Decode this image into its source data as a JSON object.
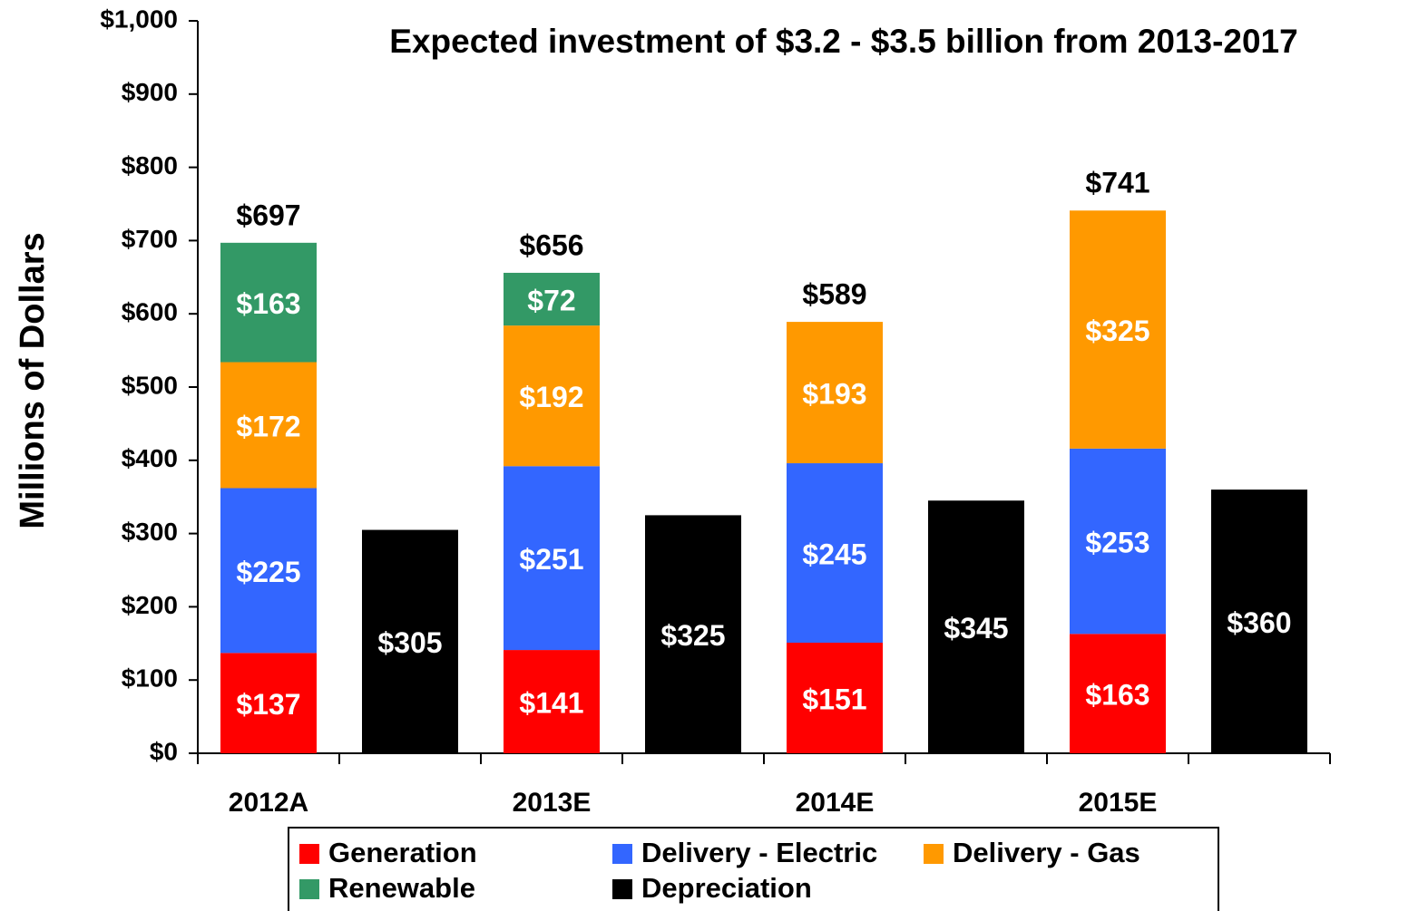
{
  "chart_data": {
    "type": "bar",
    "stacked": true,
    "title": "Expected investment of $3.2 - $3.5 billion from 2013-2017",
    "y_label": "Millions of Dollars",
    "categories": [
      "2012A",
      null,
      "2013E",
      null,
      "2014E",
      null,
      "2015E",
      null
    ],
    "series": [
      {
        "name": "Generation",
        "color": "#ff0000",
        "values": [
          137,
          null,
          141,
          null,
          151,
          null,
          163,
          null
        ],
        "value_labels": [
          "$137",
          null,
          "$141",
          null,
          "$151",
          null,
          "$163",
          null
        ]
      },
      {
        "name": "Delivery - Electric",
        "color": "#3366ff",
        "values": [
          225,
          null,
          251,
          null,
          245,
          null,
          253,
          null
        ],
        "value_labels": [
          "$225",
          null,
          "$251",
          null,
          "$245",
          null,
          "$253",
          null
        ]
      },
      {
        "name": "Delivery - Gas",
        "color": "#ff9900",
        "values": [
          172,
          null,
          192,
          null,
          193,
          null,
          325,
          null
        ],
        "value_labels": [
          "$172",
          null,
          "$192",
          null,
          "$193",
          null,
          "$325",
          null
        ]
      },
      {
        "name": "Renewable",
        "color": "#339966",
        "values": [
          163,
          null,
          72,
          null,
          null,
          null,
          null,
          null
        ],
        "value_labels": [
          "$163",
          null,
          "$72",
          null,
          null,
          null,
          null,
          null
        ]
      },
      {
        "name": "Depreciation",
        "color": "#000000",
        "values": [
          null,
          305,
          null,
          325,
          null,
          345,
          null,
          360
        ],
        "value_labels": [
          null,
          "$305",
          null,
          "$325",
          null,
          "$345",
          null,
          "$360"
        ]
      }
    ],
    "totals": {
      "values": [
        697,
        null,
        656,
        null,
        589,
        null,
        741,
        null
      ],
      "value_labels": [
        "$697",
        null,
        "$656",
        null,
        "$589",
        null,
        "$741",
        null
      ]
    },
    "ylim": [
      0,
      1000
    ],
    "yticks": [
      {
        "value": 0,
        "label": "$0"
      },
      {
        "value": 100,
        "label": "$100"
      },
      {
        "value": 200,
        "label": "$200"
      },
      {
        "value": 300,
        "label": "$300"
      },
      {
        "value": 400,
        "label": "$400"
      },
      {
        "value": 500,
        "label": "$500"
      },
      {
        "value": 600,
        "label": "$600"
      },
      {
        "value": 700,
        "label": "$700"
      },
      {
        "value": 800,
        "label": "$800"
      },
      {
        "value": 900,
        "label": "$900"
      },
      {
        "value": 1000,
        "label": "$1,000"
      }
    ],
    "grid": false
  }
}
